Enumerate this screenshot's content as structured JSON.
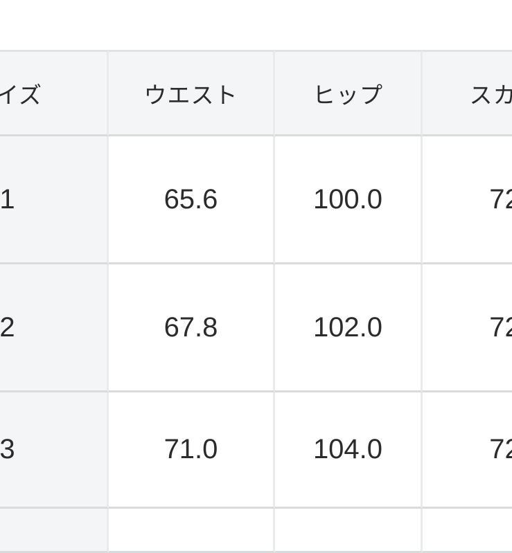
{
  "size_chart": {
    "columns": [
      {
        "id": "size",
        "label": "サイズ"
      },
      {
        "id": "waist",
        "label": "ウエスト"
      },
      {
        "id": "hip",
        "label": "ヒップ"
      },
      {
        "id": "skirt",
        "label": "スカー"
      }
    ],
    "rows": [
      {
        "size": "1",
        "waist": "65.6",
        "hip": "100.0",
        "skirt": "72"
      },
      {
        "size": "2",
        "waist": "67.8",
        "hip": "102.0",
        "skirt": "72"
      },
      {
        "size": "3",
        "waist": "71.0",
        "hip": "104.0",
        "skirt": "72"
      }
    ],
    "colors": {
      "header_bg": "#f4f5f6",
      "cell_bg": "#ffffff",
      "row_border": "#d9dadc",
      "column_border": "#e9eaec",
      "top_border": "#e2e3e5",
      "text": "#2b2b2b"
    }
  }
}
